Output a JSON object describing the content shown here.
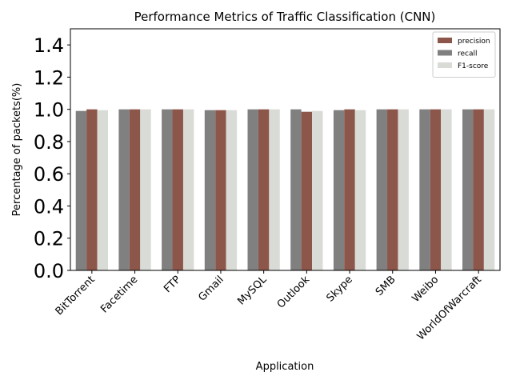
{
  "chart_data": {
    "type": "bar",
    "title": "Performance Metrics of Traffic Classification (CNN)",
    "xlabel": "Application",
    "ylabel": "Percentage of packets(%)",
    "ylim": [
      0,
      1.5
    ],
    "yticks": [
      "0.0",
      "0.2",
      "0.4",
      "0.6",
      "0.8",
      "1.0",
      "1.2",
      "1.4"
    ],
    "grid": false,
    "legend_position": "top-right",
    "categories": [
      "BitTorrent",
      "Facetime",
      "FTP",
      "Gmail",
      "MySQL",
      "Outlook",
      "Skype",
      "SMB",
      "Weibo",
      "WorldOfWarcraft"
    ],
    "series": [
      {
        "name": "recall",
        "color": "#808080",
        "values": [
          0.99,
          1.0,
          1.0,
          0.995,
          1.0,
          1.0,
          0.995,
          1.0,
          1.0,
          1.0
        ]
      },
      {
        "name": "precision",
        "color": "#8c564b",
        "values": [
          1.0,
          1.0,
          1.0,
          0.995,
          1.0,
          0.985,
          1.0,
          1.0,
          1.0,
          1.0
        ]
      },
      {
        "name": "F1-score",
        "color": "#d9dcd6",
        "values": [
          0.995,
          1.0,
          1.0,
          0.995,
          1.0,
          0.99,
          0.995,
          1.0,
          1.0,
          1.0
        ]
      }
    ],
    "legend_order": [
      "precision",
      "recall",
      "F1-score"
    ]
  }
}
